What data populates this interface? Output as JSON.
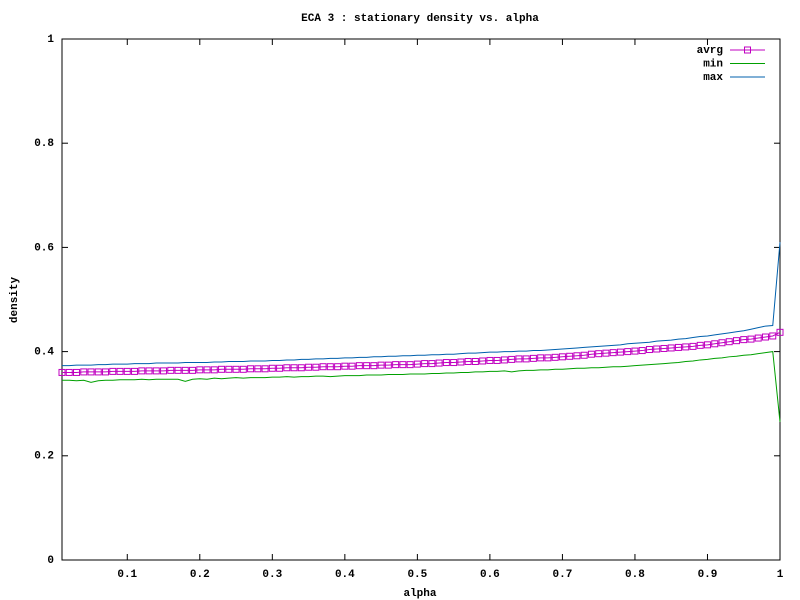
{
  "chart_data": {
    "type": "line",
    "title": "ECA 3 : stationary density vs. alpha",
    "x_label": "alpha",
    "y_label": "density",
    "x": [
      0.01,
      0.02,
      0.03,
      0.04,
      0.05,
      0.06,
      0.07,
      0.08,
      0.09,
      0.1,
      0.11,
      0.12,
      0.13,
      0.14,
      0.15,
      0.16,
      0.17,
      0.18,
      0.19,
      0.2,
      0.21,
      0.22,
      0.23,
      0.24,
      0.25,
      0.26,
      0.27,
      0.28,
      0.29,
      0.3,
      0.31,
      0.32,
      0.33,
      0.34,
      0.35,
      0.36,
      0.37,
      0.38,
      0.39,
      0.4,
      0.41,
      0.42,
      0.43,
      0.44,
      0.45,
      0.46,
      0.47,
      0.48,
      0.49,
      0.5,
      0.51,
      0.52,
      0.53,
      0.54,
      0.55,
      0.56,
      0.57,
      0.58,
      0.59,
      0.6,
      0.61,
      0.62,
      0.63,
      0.64,
      0.65,
      0.66,
      0.67,
      0.68,
      0.69,
      0.7,
      0.71,
      0.72,
      0.73,
      0.74,
      0.75,
      0.76,
      0.77,
      0.78,
      0.79,
      0.8,
      0.81,
      0.82,
      0.83,
      0.84,
      0.85,
      0.86,
      0.87,
      0.88,
      0.89,
      0.9,
      0.91,
      0.92,
      0.93,
      0.94,
      0.95,
      0.96,
      0.97,
      0.98,
      0.99,
      1
    ],
    "series": [
      {
        "name": "avrg",
        "color": "#c000c0",
        "marker": "square",
        "values": [
          0.36,
          0.36,
          0.36,
          0.361,
          0.361,
          0.361,
          0.361,
          0.362,
          0.362,
          0.362,
          0.362,
          0.363,
          0.363,
          0.363,
          0.363,
          0.364,
          0.364,
          0.364,
          0.364,
          0.365,
          0.365,
          0.365,
          0.366,
          0.366,
          0.366,
          0.366,
          0.367,
          0.367,
          0.367,
          0.368,
          0.368,
          0.369,
          0.369,
          0.369,
          0.37,
          0.37,
          0.371,
          0.371,
          0.371,
          0.372,
          0.372,
          0.373,
          0.373,
          0.373,
          0.374,
          0.374,
          0.375,
          0.375,
          0.375,
          0.376,
          0.377,
          0.377,
          0.378,
          0.379,
          0.379,
          0.38,
          0.381,
          0.381,
          0.382,
          0.383,
          0.383,
          0.384,
          0.385,
          0.386,
          0.386,
          0.387,
          0.388,
          0.388,
          0.389,
          0.39,
          0.391,
          0.392,
          0.393,
          0.395,
          0.396,
          0.397,
          0.398,
          0.399,
          0.4,
          0.401,
          0.402,
          0.404,
          0.405,
          0.406,
          0.407,
          0.408,
          0.409,
          0.41,
          0.412,
          0.413,
          0.415,
          0.417,
          0.419,
          0.421,
          0.423,
          0.424,
          0.426,
          0.428,
          0.43,
          0.437
        ]
      },
      {
        "name": "min",
        "color": "#00a000",
        "values": [
          0.345,
          0.345,
          0.344,
          0.345,
          0.341,
          0.344,
          0.345,
          0.345,
          0.346,
          0.346,
          0.346,
          0.347,
          0.346,
          0.347,
          0.347,
          0.347,
          0.347,
          0.343,
          0.347,
          0.348,
          0.347,
          0.349,
          0.348,
          0.349,
          0.35,
          0.349,
          0.35,
          0.35,
          0.35,
          0.351,
          0.351,
          0.352,
          0.351,
          0.352,
          0.352,
          0.353,
          0.353,
          0.352,
          0.353,
          0.354,
          0.354,
          0.354,
          0.355,
          0.355,
          0.355,
          0.356,
          0.356,
          0.356,
          0.357,
          0.357,
          0.357,
          0.358,
          0.358,
          0.359,
          0.359,
          0.36,
          0.36,
          0.361,
          0.361,
          0.362,
          0.362,
          0.363,
          0.361,
          0.363,
          0.364,
          0.364,
          0.365,
          0.365,
          0.366,
          0.366,
          0.367,
          0.368,
          0.368,
          0.369,
          0.369,
          0.37,
          0.371,
          0.371,
          0.372,
          0.373,
          0.374,
          0.375,
          0.376,
          0.377,
          0.378,
          0.379,
          0.381,
          0.382,
          0.384,
          0.385,
          0.387,
          0.388,
          0.39,
          0.391,
          0.393,
          0.394,
          0.396,
          0.398,
          0.4,
          0.265
        ]
      },
      {
        "name": "max",
        "color": "#0060ad",
        "values": [
          0.373,
          0.373,
          0.374,
          0.374,
          0.374,
          0.375,
          0.375,
          0.376,
          0.376,
          0.376,
          0.377,
          0.377,
          0.377,
          0.378,
          0.378,
          0.378,
          0.378,
          0.379,
          0.379,
          0.379,
          0.379,
          0.38,
          0.38,
          0.381,
          0.381,
          0.381,
          0.382,
          0.382,
          0.382,
          0.383,
          0.383,
          0.384,
          0.384,
          0.385,
          0.385,
          0.386,
          0.386,
          0.387,
          0.387,
          0.388,
          0.388,
          0.389,
          0.389,
          0.39,
          0.39,
          0.391,
          0.391,
          0.392,
          0.392,
          0.393,
          0.393,
          0.394,
          0.394,
          0.395,
          0.395,
          0.396,
          0.397,
          0.397,
          0.398,
          0.399,
          0.399,
          0.4,
          0.4,
          0.401,
          0.401,
          0.402,
          0.402,
          0.403,
          0.404,
          0.405,
          0.406,
          0.407,
          0.408,
          0.409,
          0.41,
          0.411,
          0.412,
          0.413,
          0.415,
          0.416,
          0.417,
          0.418,
          0.42,
          0.421,
          0.422,
          0.424,
          0.425,
          0.427,
          0.429,
          0.43,
          0.432,
          0.434,
          0.436,
          0.438,
          0.44,
          0.443,
          0.446,
          0.449,
          0.45,
          0.61
        ]
      }
    ],
    "xlim": [
      0.01,
      1
    ],
    "ylim": [
      0,
      1
    ],
    "xticks": [
      0.1,
      0.2,
      0.3,
      0.4,
      0.5,
      0.6,
      0.7,
      0.8,
      0.9,
      1
    ],
    "yticks": [
      0,
      0.2,
      0.4,
      0.6,
      0.8,
      1
    ],
    "legend": "top-right"
  }
}
